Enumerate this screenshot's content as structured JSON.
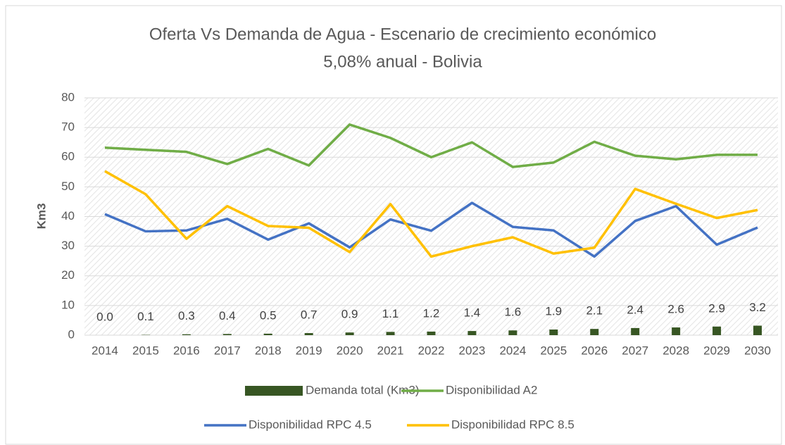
{
  "chart_data": {
    "type": "bar_line",
    "title": "Oferta Vs Demanda de Agua - Escenario de crecimiento económico",
    "subtitle": "5,08% anual - Bolivia",
    "y_label": "Km3",
    "categories": [
      "2014",
      "2015",
      "2016",
      "2017",
      "2018",
      "2019",
      "2020",
      "2021",
      "2022",
      "2023",
      "2024",
      "2025",
      "2026",
      "2027",
      "2028",
      "2029",
      "2030"
    ],
    "series": [
      {
        "name": "Demanda total (Km3)",
        "type": "bar",
        "color": "#375623",
        "values": [
          0.0,
          0.1,
          0.3,
          0.4,
          0.5,
          0.7,
          0.9,
          1.1,
          1.2,
          1.4,
          1.6,
          1.9,
          2.1,
          2.4,
          2.6,
          2.9,
          3.2
        ],
        "value_labels": [
          "0.0",
          "0.1",
          "0.3",
          "0.4",
          "0.5",
          "0.7",
          "0.9",
          "1.1",
          "1.2",
          "1.4",
          "1.6",
          "1.9",
          "2.1",
          "2.4",
          "2.6",
          "2.9",
          "3.2"
        ]
      },
      {
        "name": "Disponibilidad A2",
        "type": "line",
        "color": "#70ad47",
        "values": [
          63.2,
          62.5,
          61.8,
          57.7,
          62.8,
          57.2,
          71,
          66.5,
          60,
          65,
          56.7,
          58.2,
          65.2,
          60.5,
          59.3,
          60.8,
          60.8
        ]
      },
      {
        "name": "Disponibilidad RPC 4.5",
        "type": "line",
        "color": "#4472c4",
        "values": [
          40.8,
          35,
          35.3,
          39.2,
          32.2,
          37.7,
          29.6,
          39,
          35.2,
          44.6,
          36.5,
          35.3,
          26.5,
          38.5,
          43.5,
          30.5,
          36.3
        ]
      },
      {
        "name": "Disponibilidad RPC 8.5",
        "type": "line",
        "color": "#ffc000",
        "values": [
          55.3,
          47.5,
          32.5,
          43.5,
          36.8,
          36.2,
          28,
          44.2,
          26.5,
          30,
          33,
          27.5,
          29.5,
          49.3,
          44.3,
          39.5,
          42.2
        ]
      }
    ],
    "ylim": [
      0,
      80
    ],
    "yticks": [
      0,
      10,
      20,
      30,
      40,
      50,
      60,
      70,
      80
    ],
    "grid": true
  }
}
